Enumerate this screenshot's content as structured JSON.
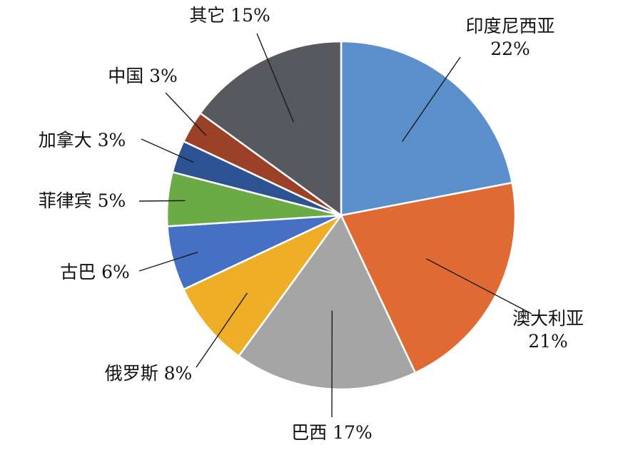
{
  "chart_data": {
    "type": "pie",
    "start_angle_deg": 0,
    "direction": "clockwise",
    "slices": [
      {
        "name": "印度尼西亚",
        "value": 22,
        "label": "印度尼西亚\n22%",
        "color": "#5b8fcc"
      },
      {
        "name": "澳大利亚",
        "value": 21,
        "label": "澳大利亚\n21%",
        "color": "#e06a34"
      },
      {
        "name": "巴西",
        "value": 17,
        "label": "巴西 17%",
        "color": "#a5a5a5"
      },
      {
        "name": "俄罗斯",
        "value": 8,
        "label": "俄罗斯 8%",
        "color": "#efae27"
      },
      {
        "name": "古巴",
        "value": 6,
        "label": "古巴 6%",
        "color": "#4670c4"
      },
      {
        "name": "菲律宾",
        "value": 5,
        "label": "菲律宾 5%",
        "color": "#6aab46"
      },
      {
        "name": "加拿大",
        "value": 3,
        "label": "加拿大 3%",
        "color": "#2e5392"
      },
      {
        "name": "中国",
        "value": 3,
        "label": "中国 3%",
        "color": "#9b4127"
      },
      {
        "name": "其它",
        "value": 15,
        "label": "其它 15%",
        "color": "#58595e"
      }
    ]
  }
}
